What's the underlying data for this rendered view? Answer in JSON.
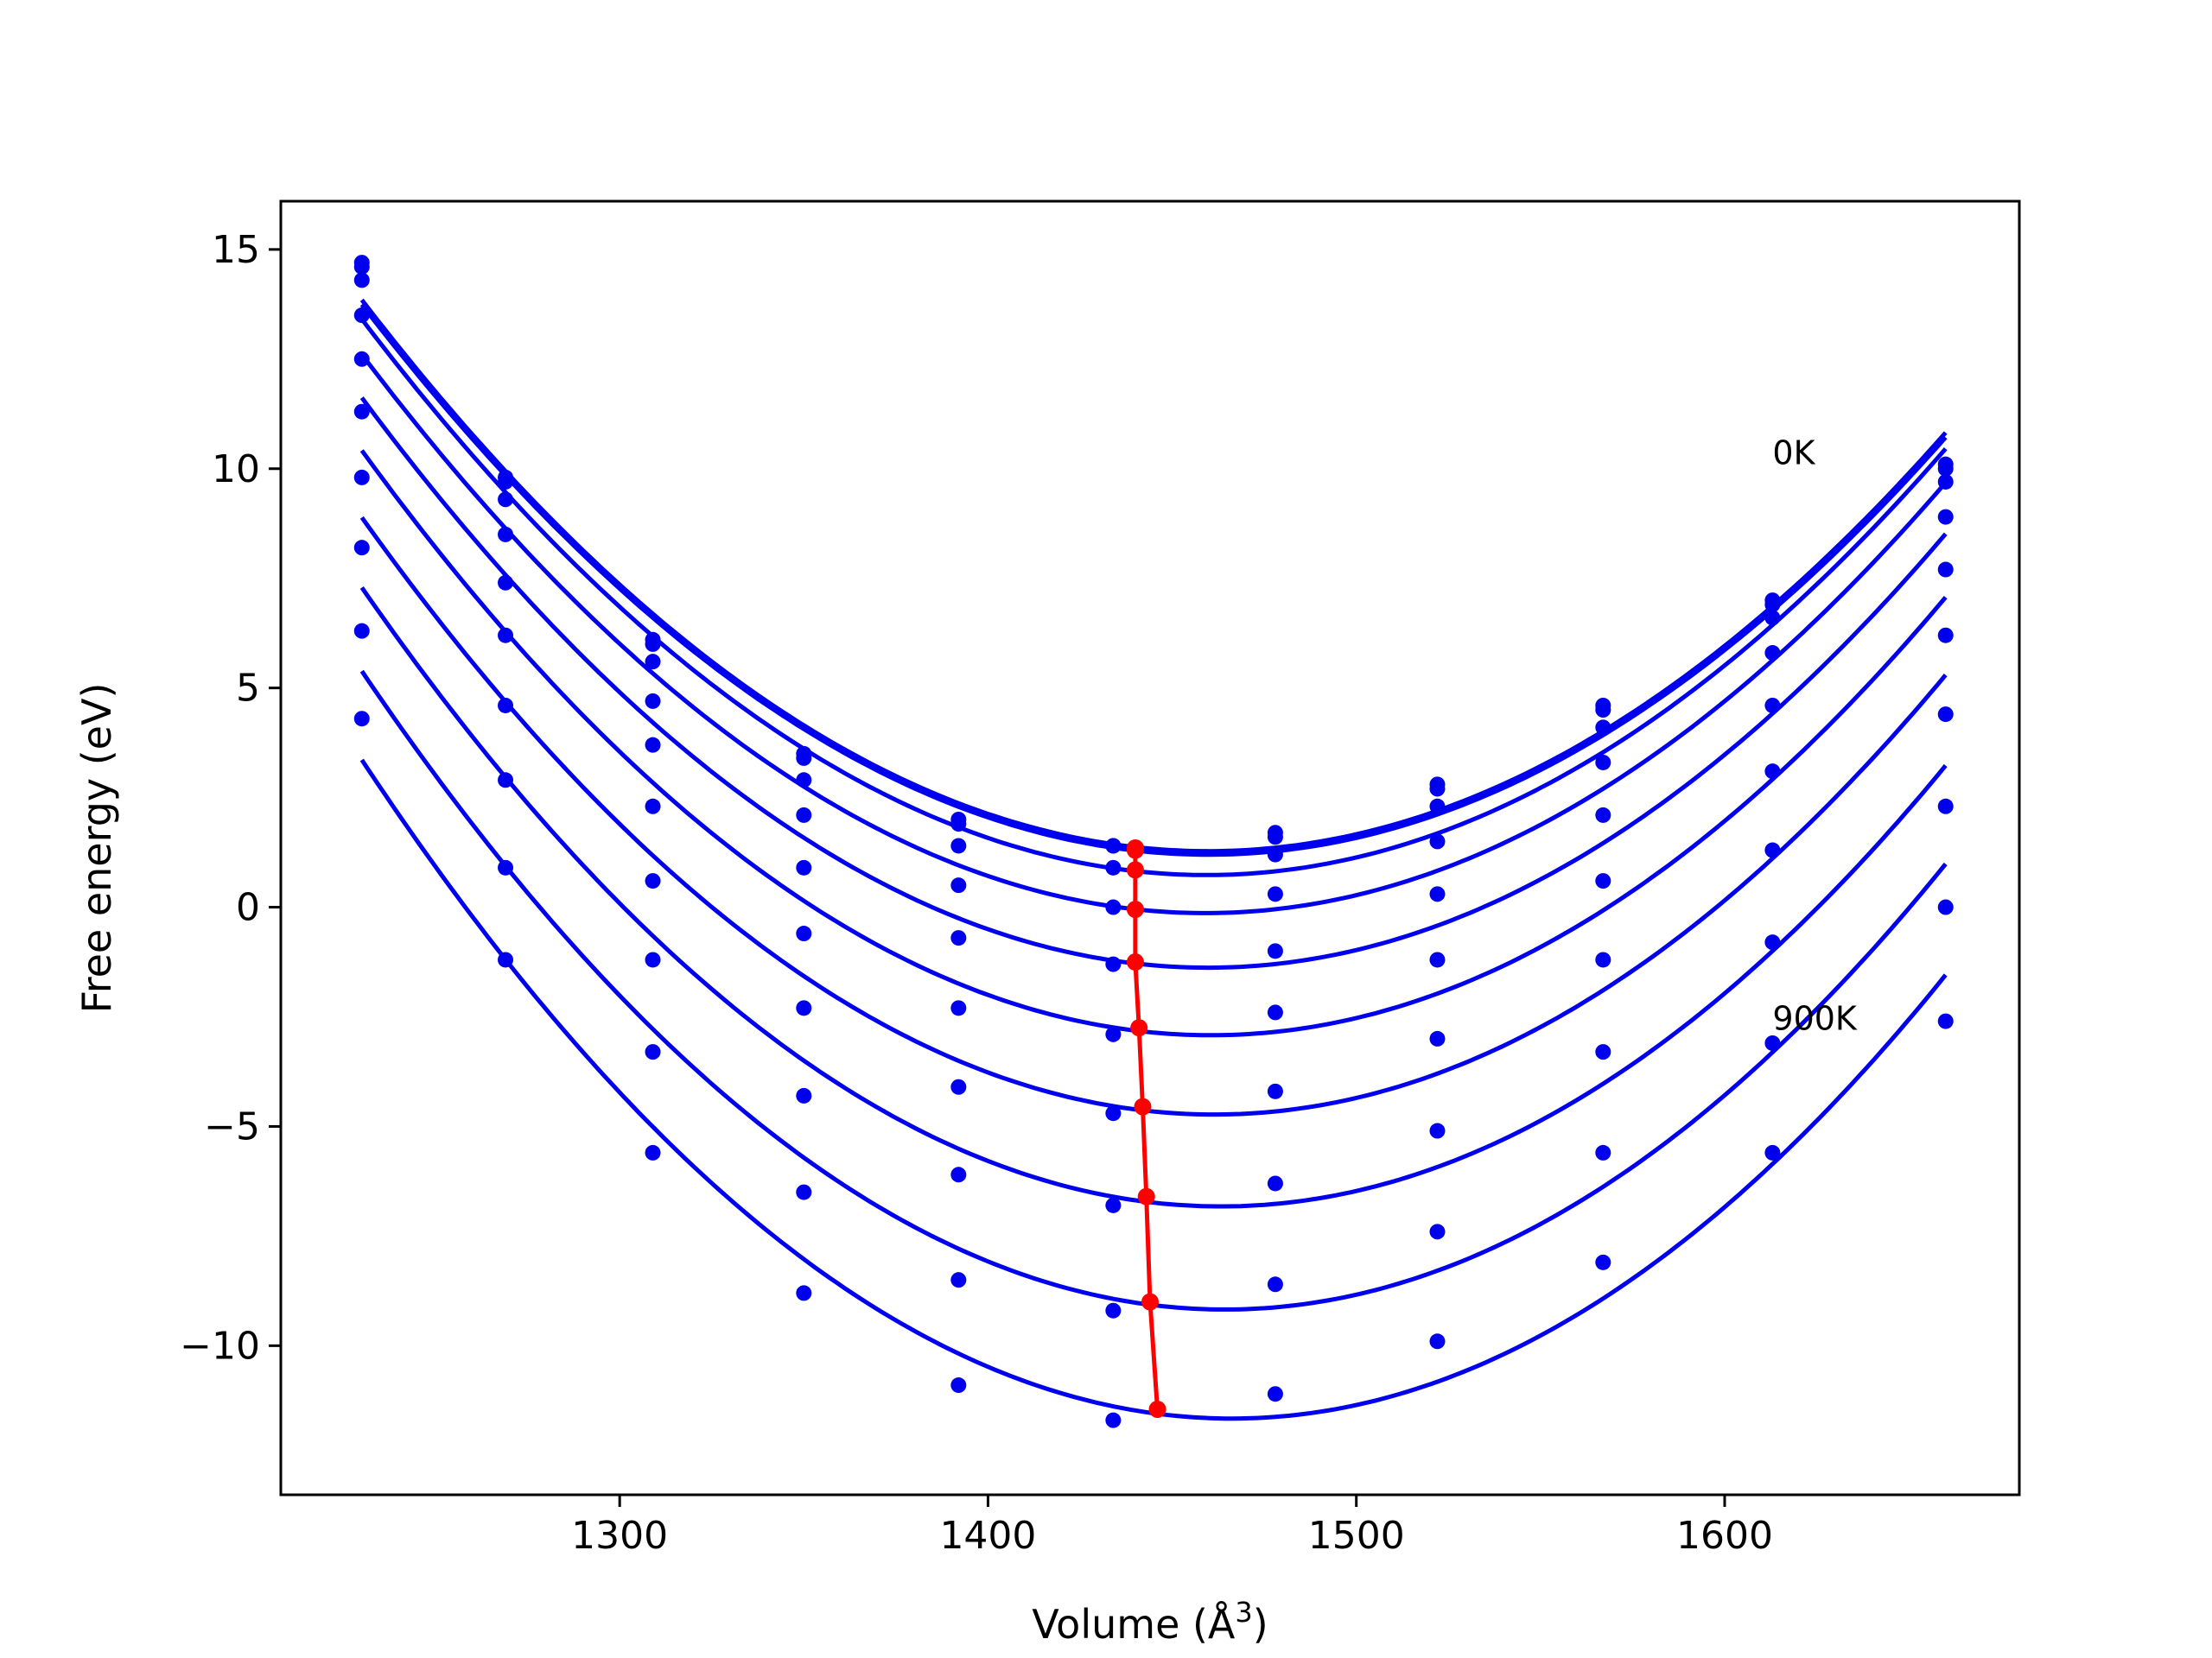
{
  "chart_data": {
    "type": "line",
    "xlabel": "Volume (Å",
    "xlabel_sup": "3",
    "xlabel_close": ")",
    "ylabel": "Free energy (eV)",
    "xlim": [
      1208,
      1680
    ],
    "ylim": [
      -13.4,
      16.1
    ],
    "x_ticks": [
      1300,
      1400,
      1500,
      1600
    ],
    "y_ticks": [
      {
        "value": 15,
        "label": "15"
      },
      {
        "value": 10,
        "label": "10"
      },
      {
        "value": 5,
        "label": "5"
      },
      {
        "value": 0,
        "label": "0"
      },
      {
        "value": -5,
        "label": "−5"
      },
      {
        "value": -10,
        "label": "−10"
      }
    ],
    "grid": false,
    "fit_color": "#0000ee",
    "min_color": "#ff0000",
    "annotations": [
      {
        "text": "0K",
        "x": 1613,
        "y": 10.1
      },
      {
        "text": "900K",
        "x": 1613,
        "y": -2.8
      }
    ],
    "volumes": [
      1230,
      1269,
      1309,
      1350,
      1392,
      1434,
      1478,
      1522,
      1567,
      1613,
      1660
    ],
    "series": [
      {
        "values": [
          14.7,
          9.8,
          6.1,
          3.5,
          2.0,
          1.4,
          1.7,
          2.8,
          4.6,
          7.0,
          10.1
        ],
        "fit_min": [
          1440,
          1.35
        ]
      },
      {
        "values": [
          14.6,
          9.7,
          6.0,
          3.4,
          1.9,
          1.4,
          1.6,
          2.7,
          4.5,
          6.9,
          10.0
        ],
        "fit_min": [
          1440,
          1.3
        ]
      },
      {
        "values": [
          14.3,
          9.3,
          5.6,
          2.9,
          1.4,
          0.9,
          1.2,
          2.3,
          4.1,
          6.6,
          9.7
        ],
        "fit_min": [
          1440,
          0.85
        ]
      },
      {
        "values": [
          13.5,
          8.5,
          4.7,
          2.1,
          0.5,
          0.0,
          0.3,
          1.5,
          3.3,
          5.8,
          8.9
        ],
        "fit_min": [
          1440,
          -0.05
        ]
      },
      {
        "values": [
          12.5,
          7.4,
          3.7,
          0.9,
          -0.7,
          -1.3,
          -1.0,
          0.3,
          2.1,
          4.6,
          7.7
        ],
        "fit_min": [
          1440,
          -1.25
        ]
      },
      {
        "values": [
          11.3,
          6.2,
          2.3,
          -0.6,
          -2.3,
          -2.9,
          -2.4,
          -1.2,
          0.6,
          3.1,
          6.2
        ],
        "fit_min": [
          1441,
          -2.75
        ]
      },
      {
        "values": [
          9.8,
          4.6,
          0.6,
          -2.3,
          -4.1,
          -4.7,
          -4.2,
          -3.0,
          -1.2,
          1.3,
          4.4
        ],
        "fit_min": [
          1442,
          -4.55
        ]
      },
      {
        "values": [
          8.2,
          2.9,
          -1.2,
          -4.3,
          -6.1,
          -6.8,
          -6.3,
          -5.1,
          -3.3,
          -0.8,
          2.3
        ],
        "fit_min": [
          1443,
          -6.6
        ]
      },
      {
        "values": [
          6.3,
          0.9,
          -3.3,
          -6.5,
          -8.5,
          -9.2,
          -8.6,
          -7.4,
          -5.6,
          -3.1,
          0.0
        ],
        "fit_min": [
          1444,
          -9.0
        ]
      },
      {
        "values": [
          4.3,
          -1.2,
          -5.6,
          -8.8,
          -10.9,
          -11.7,
          -11.1,
          -9.9,
          -8.1,
          -5.6,
          -2.6
        ],
        "fit_min": [
          1446,
          -11.45
        ]
      }
    ]
  }
}
